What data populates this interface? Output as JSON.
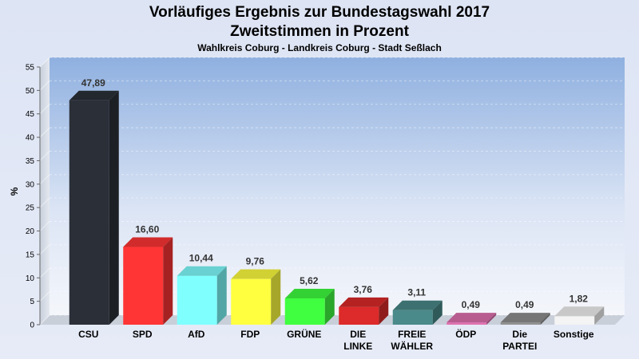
{
  "chart_data": {
    "type": "bar",
    "title_line1": "Vorläufiges Ergebnis zur Bundestagswahl 2017",
    "title_line2": "Zweitstimmen in Prozent",
    "subtitle": "Wahlkreis Coburg - Landkreis Coburg - Stadt Seßlach",
    "ylabel": "%",
    "ylim": [
      0,
      55
    ],
    "yticks": [
      0,
      5,
      10,
      15,
      20,
      25,
      30,
      35,
      40,
      45,
      50,
      55
    ],
    "grid": true,
    "categories": [
      [
        "CSU"
      ],
      [
        "SPD"
      ],
      [
        "AfD"
      ],
      [
        "FDP"
      ],
      [
        "GRÜNE"
      ],
      [
        "DIE",
        "LINKE"
      ],
      [
        "FREIE",
        "WÄHLER"
      ],
      [
        "ÖDP"
      ],
      [
        "Die",
        "PARTEI"
      ],
      [
        "Sonstige"
      ]
    ],
    "values": [
      47.89,
      16.6,
      10.44,
      9.76,
      5.62,
      3.76,
      3.11,
      0.49,
      0.49,
      1.82
    ],
    "value_labels": [
      "47,89",
      "16,60",
      "10,44",
      "9,76",
      "5,62",
      "3,76",
      "3,11",
      "0,49",
      "0,49",
      "1,82"
    ],
    "colors": [
      "#2b2f38",
      "#ff3535",
      "#80ffff",
      "#ffff40",
      "#40ff40",
      "#dd2a2a",
      "#4a8a8a",
      "#e070b0",
      "#909090",
      "#f4f4f4"
    ]
  }
}
